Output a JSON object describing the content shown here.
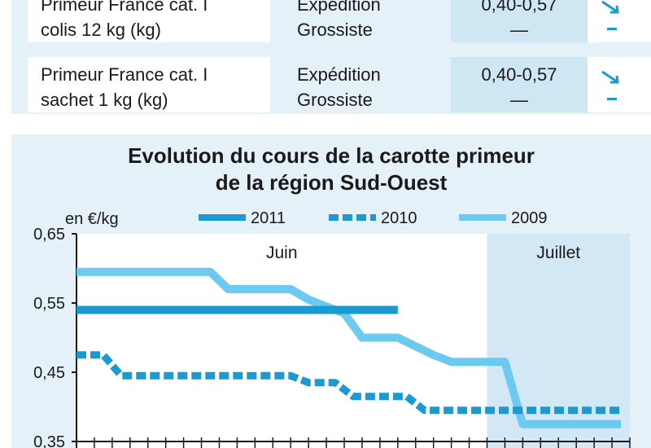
{
  "table": {
    "rows": [
      {
        "product": [
          "Primeur France cat. I",
          "colis 12 kg (kg)"
        ],
        "stage": [
          "Expédition",
          "Grossiste"
        ],
        "price": [
          "0,40-0,57",
          "—"
        ],
        "trend": [
          "down",
          "stable"
        ]
      },
      {
        "product": [
          "Primeur France cat. I",
          "sachet 1 kg (kg)"
        ],
        "stage": [
          "Expédition",
          "Grossiste"
        ],
        "price": [
          "0,40-0,57",
          "—"
        ],
        "trend": [
          "down",
          "stable"
        ]
      }
    ]
  },
  "chart_data": {
    "type": "line",
    "title": [
      "Evolution du cours de la carotte primeur",
      "de la région Sud-Ouest"
    ],
    "ylabel": "en €/kg",
    "ylim": [
      0.35,
      0.65
    ],
    "yticks": [
      "0,65",
      "0,55",
      "0,45",
      "0,35"
    ],
    "ytick_values": [
      0.65,
      0.55,
      0.45,
      0.35
    ],
    "x_count": 31,
    "periods": [
      {
        "label": "Juin",
        "range": [
          0,
          23
        ]
      },
      {
        "label": "Juillet",
        "range": [
          23,
          31
        ]
      }
    ],
    "legend_position": "top",
    "series": [
      {
        "name": "2011",
        "color": "#1b9ad2",
        "style": "solid",
        "x": [
          0,
          18
        ],
        "y": [
          0.54,
          0.54
        ]
      },
      {
        "name": "2010",
        "color": "#1b9ad2",
        "style": "dashed",
        "x": [
          0,
          1.5,
          2.5,
          12,
          13,
          14.5,
          15.5,
          18.5,
          19.5,
          30.5
        ],
        "y": [
          0.475,
          0.475,
          0.445,
          0.445,
          0.435,
          0.435,
          0.415,
          0.415,
          0.395,
          0.395
        ]
      },
      {
        "name": "2009",
        "color": "#6ccaf0",
        "style": "solid",
        "x": [
          0,
          7.5,
          8.5,
          12,
          13,
          15,
          16,
          18,
          20,
          21,
          24,
          25,
          30.5
        ],
        "y": [
          0.595,
          0.595,
          0.57,
          0.57,
          0.555,
          0.535,
          0.5,
          0.5,
          0.475,
          0.465,
          0.465,
          0.375,
          0.375
        ]
      }
    ]
  }
}
